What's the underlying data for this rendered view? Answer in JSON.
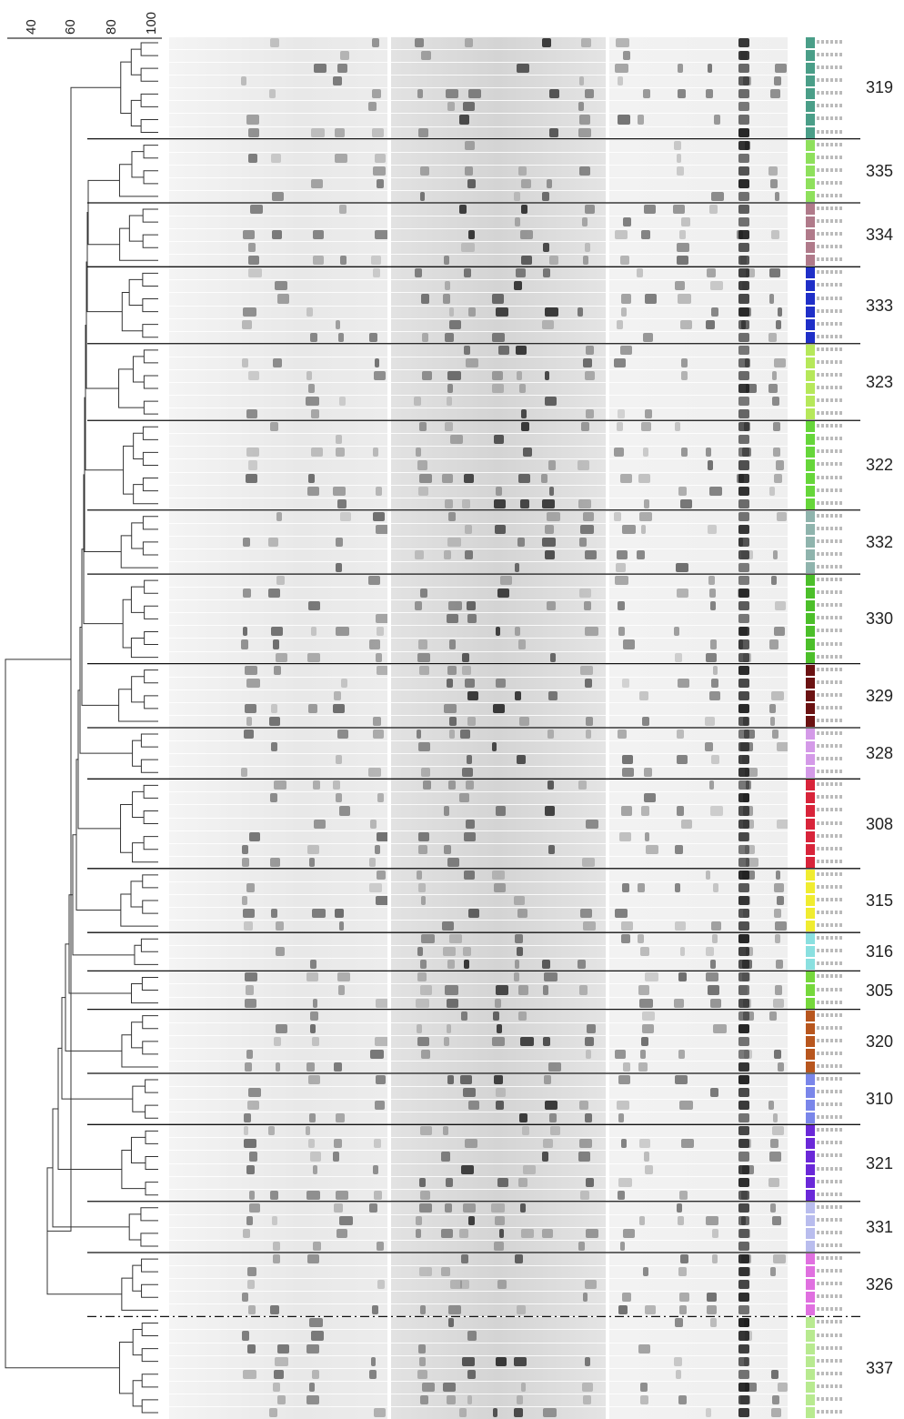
{
  "scale": {
    "ticks": [
      "40",
      "60",
      "80",
      "100"
    ]
  },
  "clusters": [
    {
      "label": "319",
      "color": "#4a9e88",
      "lanes": 8
    },
    {
      "label": "335",
      "color": "#8ee05c",
      "lanes": 5
    },
    {
      "label": "334",
      "color": "#b07a8a",
      "lanes": 5
    },
    {
      "label": "333",
      "color": "#1f2fc8",
      "lanes": 6
    },
    {
      "label": "323",
      "color": "#b6e85a",
      "lanes": 6
    },
    {
      "label": "322",
      "color": "#66d63a",
      "lanes": 7
    },
    {
      "label": "332",
      "color": "#8fb4ad",
      "lanes": 5
    },
    {
      "label": "330",
      "color": "#4cbf2a",
      "lanes": 7
    },
    {
      "label": "329",
      "color": "#6b1212",
      "lanes": 5
    },
    {
      "label": "328",
      "color": "#d49ae8",
      "lanes": 4
    },
    {
      "label": "308",
      "color": "#d8243a",
      "lanes": 7
    },
    {
      "label": "315",
      "color": "#f0ec30",
      "lanes": 5
    },
    {
      "label": "316",
      "color": "#8ae0e0",
      "lanes": 3
    },
    {
      "label": "305",
      "color": "#76d83c",
      "lanes": 3
    },
    {
      "label": "320",
      "color": "#b8561e",
      "lanes": 5
    },
    {
      "label": "310",
      "color": "#7a86ea",
      "lanes": 4
    },
    {
      "label": "321",
      "color": "#6a28d8",
      "lanes": 6
    },
    {
      "label": "331",
      "color": "#b9bdee",
      "lanes": 4
    },
    {
      "label": "326",
      "color": "#e070e0",
      "lanes": 5
    },
    {
      "label": "337",
      "color": "#b8ea90",
      "lanes": 8
    }
  ]
}
